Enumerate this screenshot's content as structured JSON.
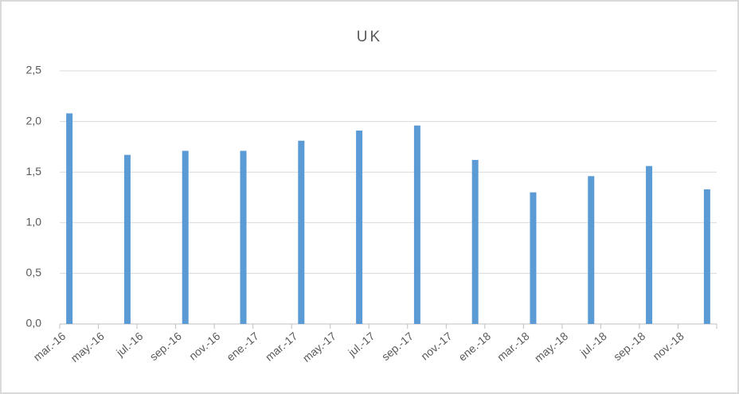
{
  "chart_data": {
    "type": "bar",
    "title": "UK",
    "categories": [
      "mar.-16",
      null,
      "may.-16",
      null,
      "jul.-16",
      null,
      "sep.-16",
      null,
      "nov.-16",
      null,
      "ene.-17",
      null,
      "mar.-17",
      null,
      "may.-17",
      null,
      "jul.-17",
      null,
      "sep.-17",
      null,
      "nov.-17",
      null,
      "ene.-18",
      null,
      "mar.-18",
      null,
      "may.-18",
      null,
      "jul.-18",
      null,
      "sep.-18",
      null,
      "nov.-18",
      null
    ],
    "values": [
      2.08,
      null,
      null,
      1.67,
      null,
      null,
      1.71,
      null,
      null,
      1.71,
      null,
      null,
      1.81,
      null,
      null,
      1.91,
      null,
      null,
      1.96,
      null,
      null,
      1.62,
      null,
      null,
      1.3,
      null,
      null,
      1.46,
      null,
      null,
      1.56,
      null,
      null,
      1.33
    ],
    "color": "#5b9bd5",
    "ylim": [
      0,
      2.5
    ],
    "yticks": [
      {
        "value": 0,
        "label": "0,0"
      },
      {
        "value": 0.5,
        "label": "0,5"
      },
      {
        "value": 1,
        "label": "1,0"
      },
      {
        "value": 1.5,
        "label": "1,5"
      },
      {
        "value": 2,
        "label": "2,0"
      },
      {
        "value": 2.5,
        "label": "2,5"
      }
    ],
    "grid": true
  }
}
